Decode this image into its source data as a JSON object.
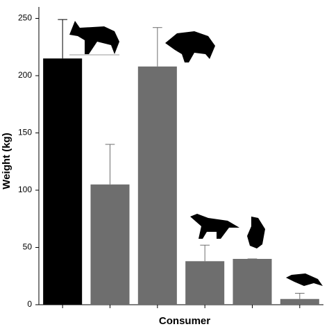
{
  "chart_data": {
    "type": "bar",
    "x_label": "Consumer",
    "y_label": "Weight (kg)",
    "categories": [
      null,
      null,
      null,
      null,
      null,
      null
    ],
    "values": [
      215,
      105,
      208,
      38,
      40,
      5
    ],
    "errors": [
      34,
      35,
      34,
      14,
      0,
      5
    ],
    "colors": [
      "#000000",
      "#6e6e6e",
      "#6e6e6e",
      "#6e6e6e",
      "#6e6e6e",
      "#6e6e6e"
    ],
    "ylim": [
      0,
      260
    ],
    "yticks": [
      0,
      50,
      100,
      150,
      200,
      250
    ],
    "grid": false
  }
}
